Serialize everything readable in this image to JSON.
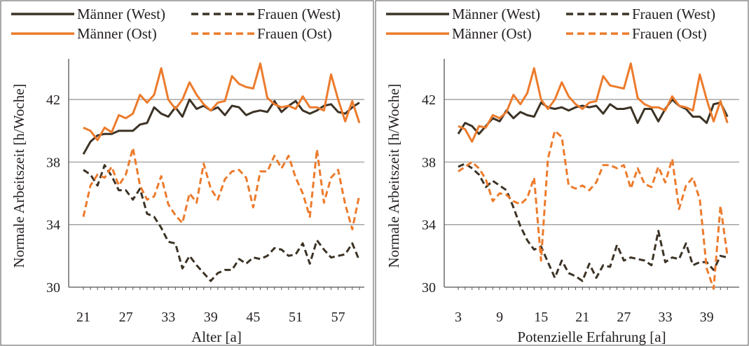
{
  "colors": {
    "west": "#3c3326",
    "ost": "#ec7b2c",
    "grid": "#9e9e9e",
    "frame": "#555555"
  },
  "chart_data": [
    {
      "type": "line",
      "xlabel": "Alter [a]",
      "ylabel": "Normale Arbeitszeit [h/Woche]",
      "x_ticks": [
        "21",
        "27",
        "33",
        "39",
        "45",
        "51",
        "57"
      ],
      "y_ticks": [
        "30",
        "34",
        "38",
        "42"
      ],
      "xlim": [
        21,
        60
      ],
      "ylim": [
        30,
        44.6
      ],
      "grid": true,
      "legend": "top",
      "x": [
        21,
        22,
        23,
        24,
        25,
        26,
        27,
        28,
        29,
        30,
        31,
        32,
        33,
        34,
        35,
        36,
        37,
        38,
        39,
        40,
        41,
        42,
        43,
        44,
        45,
        46,
        47,
        48,
        49,
        50,
        51,
        52,
        53,
        54,
        55,
        56,
        57,
        58,
        59,
        60
      ],
      "series": [
        {
          "name": "Männer (West)",
          "group": "west",
          "dashed": false,
          "values": [
            38.5,
            39.3,
            39.7,
            39.8,
            39.8,
            40.0,
            40.0,
            40.0,
            40.4,
            40.5,
            41.5,
            41.1,
            40.9,
            41.5,
            40.9,
            42.0,
            41.4,
            41.6,
            41.3,
            41.5,
            41.0,
            41.6,
            41.5,
            41.0,
            41.2,
            41.3,
            41.2,
            41.9,
            41.2,
            41.6,
            41.9,
            41.3,
            41.1,
            41.3,
            41.6,
            41.7,
            41.2,
            41.1,
            41.5,
            41.8
          ]
        },
        {
          "name": "Frauen (West)",
          "group": "west",
          "dashed": true,
          "values": [
            37.5,
            37.2,
            36.5,
            37.8,
            37.1,
            36.2,
            36.2,
            35.6,
            36.3,
            34.7,
            34.5,
            33.8,
            32.9,
            32.8,
            31.2,
            32.0,
            31.4,
            30.9,
            30.4,
            30.9,
            31.1,
            31.1,
            31.8,
            31.5,
            31.9,
            31.8,
            32.0,
            32.5,
            32.4,
            32.0,
            32.1,
            32.8,
            31.5,
            33.0,
            32.4,
            31.9,
            32.0,
            32.1,
            32.8,
            31.7
          ]
        },
        {
          "name": "Männer (Ost)",
          "group": "ost",
          "dashed": false,
          "values": [
            40.2,
            40.0,
            39.4,
            40.2,
            39.9,
            41.0,
            40.8,
            41.1,
            42.3,
            41.8,
            42.3,
            44.0,
            42.0,
            41.4,
            42.0,
            43.1,
            42.3,
            41.7,
            41.3,
            41.8,
            41.9,
            43.5,
            43.0,
            42.8,
            42.7,
            44.3,
            42.1,
            41.7,
            41.5,
            41.6,
            41.4,
            42.2,
            41.5,
            41.5,
            41.3,
            43.6,
            42.0,
            40.6,
            41.9,
            40.5
          ]
        },
        {
          "name": "Frauen (Ost)",
          "group": "ost",
          "dashed": true,
          "values": [
            34.5,
            36.5,
            37.2,
            37.0,
            37.7,
            36.5,
            37.2,
            38.9,
            36.5,
            35.6,
            35.8,
            37.1,
            35.3,
            34.6,
            34.1,
            36.0,
            35.4,
            37.9,
            36.3,
            35.6,
            36.9,
            37.4,
            37.5,
            37.0,
            35.1,
            37.4,
            37.4,
            38.4,
            37.6,
            38.4,
            37.0,
            36.0,
            34.5,
            38.8,
            35.4,
            37.0,
            37.5,
            35.3,
            33.7,
            35.9
          ]
        }
      ]
    },
    {
      "type": "line",
      "xlabel": "Potenzielle Erfahrung [a]",
      "ylabel": "Normale Arbeitszeit [h/Woche]",
      "x_ticks": [
        "3",
        "9",
        "15",
        "21",
        "27",
        "33",
        "39"
      ],
      "y_ticks": [
        "30",
        "34",
        "38",
        "42"
      ],
      "xlim": [
        3,
        42
      ],
      "ylim": [
        30,
        44.6
      ],
      "grid": true,
      "legend": "top",
      "x": [
        3,
        4,
        5,
        6,
        7,
        8,
        9,
        10,
        11,
        12,
        13,
        14,
        15,
        16,
        17,
        18,
        19,
        20,
        21,
        22,
        23,
        24,
        25,
        26,
        27,
        28,
        29,
        30,
        31,
        32,
        33,
        34,
        35,
        36,
        37,
        38,
        39,
        40,
        41,
        42
      ],
      "series": [
        {
          "name": "Männer (West)",
          "group": "west",
          "dashed": false,
          "values": [
            39.8,
            40.5,
            40.3,
            39.8,
            40.3,
            40.8,
            40.6,
            41.3,
            40.8,
            41.2,
            41.0,
            40.9,
            41.8,
            41.5,
            41.4,
            41.5,
            41.3,
            41.5,
            41.6,
            41.5,
            41.6,
            41.1,
            41.7,
            41.4,
            41.4,
            41.5,
            40.5,
            41.4,
            41.4,
            40.6,
            41.4,
            42.0,
            41.6,
            41.4,
            40.9,
            40.9,
            40.5,
            41.7,
            41.8,
            40.9
          ]
        },
        {
          "name": "Frauen (West)",
          "group": "west",
          "dashed": true,
          "values": [
            37.7,
            37.9,
            37.6,
            37.2,
            36.4,
            36.8,
            36.5,
            36.2,
            35.1,
            33.9,
            33.0,
            32.4,
            32.6,
            31.6,
            30.6,
            31.7,
            30.9,
            30.7,
            30.4,
            31.5,
            30.6,
            31.4,
            31.3,
            32.7,
            31.7,
            31.9,
            31.8,
            31.7,
            31.4,
            33.6,
            31.6,
            31.9,
            31.8,
            32.8,
            31.4,
            31.6,
            31.6,
            31.1,
            32.0,
            31.9
          ]
        },
        {
          "name": "Männer (Ost)",
          "group": "ost",
          "dashed": false,
          "values": [
            40.3,
            40.1,
            39.3,
            40.3,
            40.2,
            41.0,
            40.8,
            41.2,
            42.3,
            41.7,
            42.4,
            44.0,
            42.0,
            41.4,
            42.0,
            43.1,
            42.2,
            41.7,
            41.4,
            41.8,
            41.9,
            43.5,
            42.9,
            42.8,
            42.7,
            44.3,
            42.1,
            41.7,
            41.5,
            41.5,
            41.3,
            42.2,
            41.6,
            41.5,
            41.3,
            43.6,
            42.0,
            40.6,
            41.9,
            40.5
          ]
        },
        {
          "name": "Frauen (Ost)",
          "group": "ost",
          "dashed": true,
          "values": [
            37.4,
            37.7,
            38.0,
            37.6,
            36.9,
            35.5,
            36.0,
            35.9,
            35.5,
            35.3,
            35.7,
            37.0,
            31.7,
            38.2,
            40.0,
            39.6,
            36.5,
            36.3,
            36.5,
            36.2,
            36.7,
            37.8,
            37.8,
            37.6,
            37.8,
            36.3,
            37.6,
            36.6,
            36.4,
            37.7,
            36.7,
            38.2,
            35.0,
            36.5,
            37.0,
            35.6,
            31.2,
            29.9,
            35.2,
            32.0
          ]
        }
      ]
    }
  ]
}
